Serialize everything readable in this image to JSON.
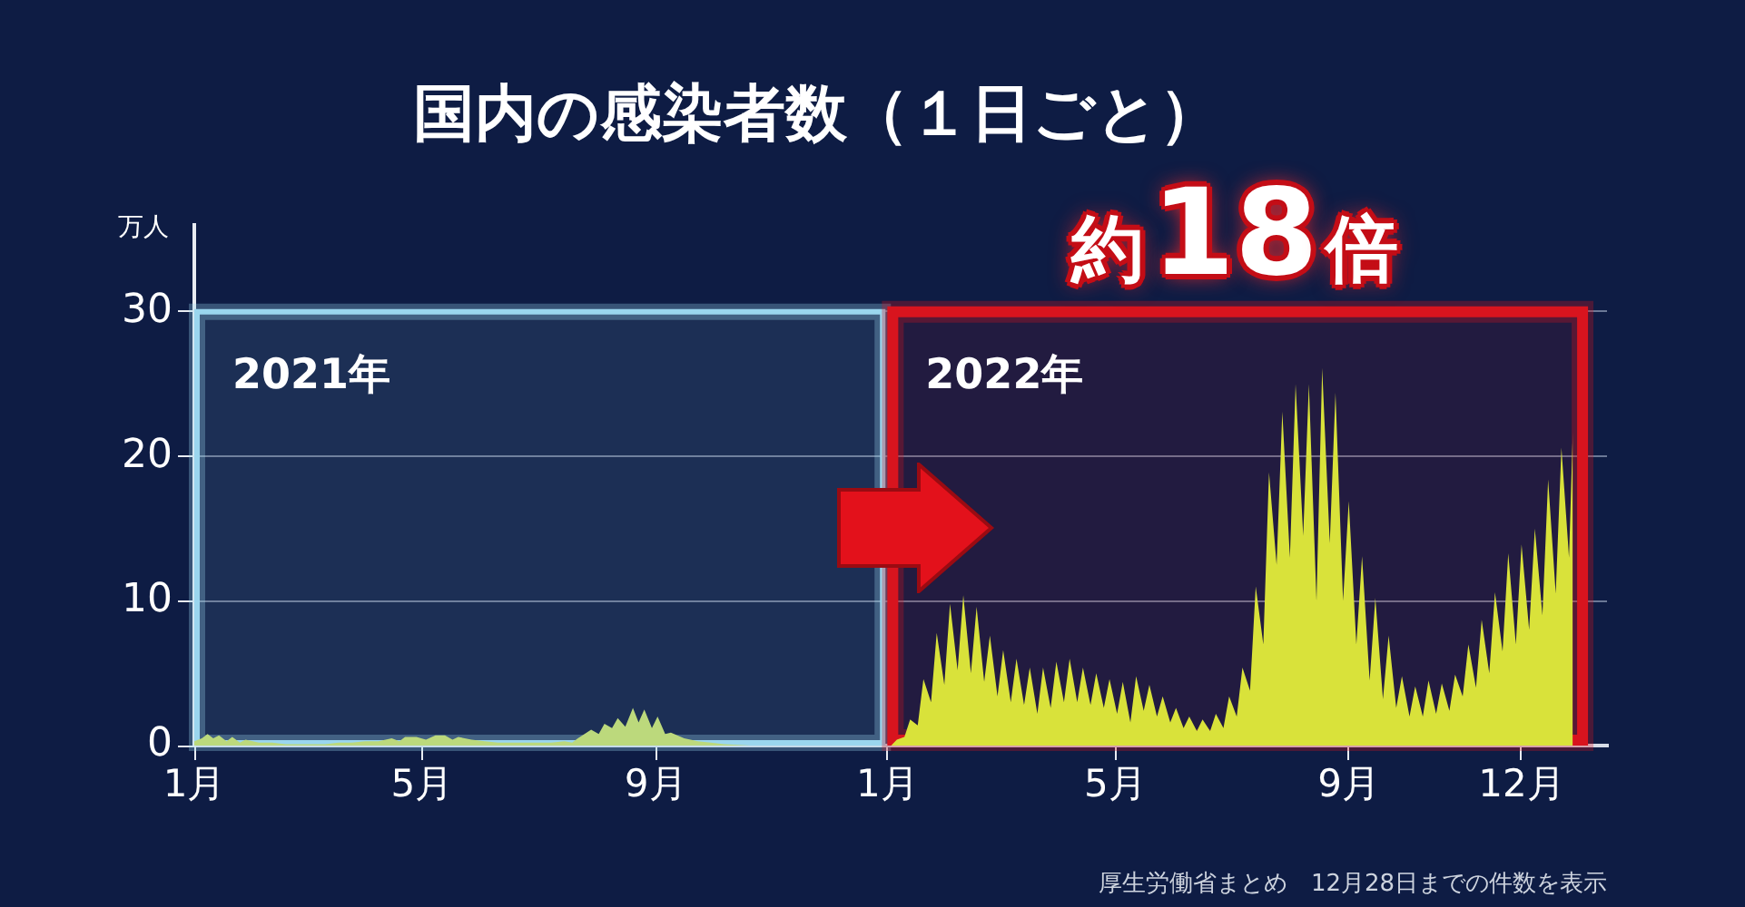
{
  "chart_data": {
    "type": "area",
    "title": "国内の感染者数（１日ごと）",
    "ylabel": "万人",
    "annotations": [
      "約18倍",
      "厚生労働省まとめ　12月28日までの件数を表示"
    ],
    "series": [
      {
        "color": "#bcd97c",
        "x": [
          "2021-01-01",
          "2021-01-05",
          "2021-01-08",
          "2021-01-11",
          "2021-01-14",
          "2021-01-18",
          "2021-01-21",
          "2021-01-25",
          "2021-01-28",
          "2021-02-04",
          "2021-02-11",
          "2021-02-18",
          "2021-02-25",
          "2021-03-04",
          "2021-03-11",
          "2021-03-18",
          "2021-03-25",
          "2021-04-01",
          "2021-04-08",
          "2021-04-15",
          "2021-04-19",
          "2021-04-22",
          "2021-04-28",
          "2021-05-03",
          "2021-05-08",
          "2021-05-13",
          "2021-05-17",
          "2021-05-20",
          "2021-05-27",
          "2021-06-03",
          "2021-06-10",
          "2021-06-17",
          "2021-06-24",
          "2021-07-01",
          "2021-07-08",
          "2021-07-15",
          "2021-07-19",
          "2021-07-22",
          "2021-07-29",
          "2021-08-02",
          "2021-08-05",
          "2021-08-09",
          "2021-08-12",
          "2021-08-16",
          "2021-08-20",
          "2021-08-23",
          "2021-08-26",
          "2021-08-30",
          "2021-09-02",
          "2021-09-06",
          "2021-09-09",
          "2021-09-16",
          "2021-09-23",
          "2021-09-30",
          "2021-10-07",
          "2021-10-21",
          "2021-11-15",
          "2021-12-15",
          "2021-12-31"
        ],
        "values": [
          0.3,
          0.5,
          0.8,
          0.5,
          0.7,
          0.3,
          0.6,
          0.2,
          0.4,
          0.2,
          0.2,
          0.1,
          0.1,
          0.1,
          0.1,
          0.2,
          0.2,
          0.3,
          0.3,
          0.5,
          0.3,
          0.6,
          0.6,
          0.4,
          0.7,
          0.7,
          0.4,
          0.6,
          0.4,
          0.3,
          0.2,
          0.2,
          0.2,
          0.2,
          0.2,
          0.3,
          0.2,
          0.5,
          1.1,
          0.8,
          1.5,
          1.2,
          1.9,
          1.3,
          2.6,
          1.6,
          2.5,
          1.2,
          2.0,
          0.8,
          0.9,
          0.5,
          0.3,
          0.2,
          0.1,
          0,
          0,
          0,
          0
        ]
      },
      {
        "color": "#d9e23a",
        "x": [
          "2022-01-01",
          "2022-01-03",
          "2022-01-06",
          "2022-01-10",
          "2022-01-13",
          "2022-01-17",
          "2022-01-20",
          "2022-01-24",
          "2022-01-27",
          "2022-01-31",
          "2022-02-03",
          "2022-02-07",
          "2022-02-10",
          "2022-02-14",
          "2022-02-17",
          "2022-02-21",
          "2022-02-24",
          "2022-02-28",
          "2022-03-03",
          "2022-03-07",
          "2022-03-10",
          "2022-03-14",
          "2022-03-17",
          "2022-03-21",
          "2022-03-24",
          "2022-03-28",
          "2022-03-31",
          "2022-04-04",
          "2022-04-07",
          "2022-04-11",
          "2022-04-14",
          "2022-04-18",
          "2022-04-21",
          "2022-04-25",
          "2022-04-28",
          "2022-05-02",
          "2022-05-05",
          "2022-05-09",
          "2022-05-12",
          "2022-05-16",
          "2022-05-19",
          "2022-05-23",
          "2022-05-26",
          "2022-05-30",
          "2022-06-02",
          "2022-06-06",
          "2022-06-09",
          "2022-06-13",
          "2022-06-16",
          "2022-06-20",
          "2022-06-23",
          "2022-06-27",
          "2022-06-30",
          "2022-07-04",
          "2022-07-07",
          "2022-07-11",
          "2022-07-14",
          "2022-07-18",
          "2022-07-21",
          "2022-07-25",
          "2022-07-28",
          "2022-08-01",
          "2022-08-04",
          "2022-08-08",
          "2022-08-11",
          "2022-08-15",
          "2022-08-18",
          "2022-08-22",
          "2022-08-25",
          "2022-08-29",
          "2022-09-01",
          "2022-09-05",
          "2022-09-08",
          "2022-09-12",
          "2022-09-15",
          "2022-09-19",
          "2022-09-22",
          "2022-09-26",
          "2022-09-29",
          "2022-10-03",
          "2022-10-06",
          "2022-10-10",
          "2022-10-13",
          "2022-10-17",
          "2022-10-20",
          "2022-10-24",
          "2022-10-27",
          "2022-10-31",
          "2022-11-03",
          "2022-11-07",
          "2022-11-10",
          "2022-11-14",
          "2022-11-17",
          "2022-11-21",
          "2022-11-24",
          "2022-11-28",
          "2022-12-01",
          "2022-12-05",
          "2022-12-08",
          "2022-12-12",
          "2022-12-15",
          "2022-12-19",
          "2022-12-22",
          "2022-12-26",
          "2022-12-28"
        ],
        "values": [
          0,
          0,
          0.4,
          0.6,
          1.8,
          1.4,
          4.6,
          3.0,
          7.8,
          4.2,
          9.8,
          5.2,
          10.4,
          5.0,
          9.6,
          4.4,
          7.6,
          3.4,
          6.6,
          3.0,
          6.0,
          2.8,
          5.4,
          2.2,
          5.4,
          2.6,
          5.8,
          3.0,
          6.0,
          3.0,
          5.4,
          2.8,
          5.0,
          2.6,
          4.6,
          2.2,
          4.4,
          1.6,
          4.8,
          2.4,
          4.2,
          2.0,
          3.4,
          1.6,
          2.6,
          1.2,
          2.0,
          1.0,
          1.8,
          1.0,
          2.2,
          1.2,
          3.4,
          2.0,
          5.4,
          3.8,
          11.0,
          7.0,
          18.9,
          12.5,
          23.1,
          13.0,
          25.0,
          14.5,
          25.0,
          10.0,
          26.1,
          14.0,
          24.4,
          10.0,
          16.9,
          7.0,
          13.1,
          4.5,
          10.2,
          3.2,
          7.6,
          2.6,
          4.8,
          2.0,
          4.1,
          2.0,
          4.5,
          2.2,
          4.3,
          2.4,
          4.9,
          3.4,
          7.0,
          4.0,
          8.7,
          5.0,
          10.6,
          6.5,
          13.3,
          7.0,
          13.9,
          8.0,
          15.0,
          9.0,
          18.4,
          10.5,
          20.6,
          13.0,
          21.7
        ]
      }
    ],
    "xlim": [
      "2021-01-01",
      "2023-01-15"
    ],
    "xticks": [
      {
        "value": "2021-01-01",
        "label": "1月"
      },
      {
        "value": "2021-05-01",
        "label": "5月"
      },
      {
        "value": "2021-09-01",
        "label": "9月"
      },
      {
        "value": "2022-01-01",
        "label": "1月"
      },
      {
        "value": "2022-05-01",
        "label": "5月"
      },
      {
        "value": "2022-09-01",
        "label": "9月"
      },
      {
        "value": "2022-12-01",
        "label": "12月"
      }
    ],
    "ylim": [
      0,
      36
    ],
    "yticks": [
      0,
      10,
      20,
      30
    ],
    "bands": [
      {
        "axis": "x",
        "from": "2021-01-01",
        "to": "2021-12-31",
        "label": "2021年",
        "color": "#9ad6ee"
      },
      {
        "axis": "x",
        "from": "2022-01-01",
        "to": "2023-01-05",
        "label": "2022年",
        "color": "#d8141e"
      }
    ],
    "grid": "y"
  }
}
